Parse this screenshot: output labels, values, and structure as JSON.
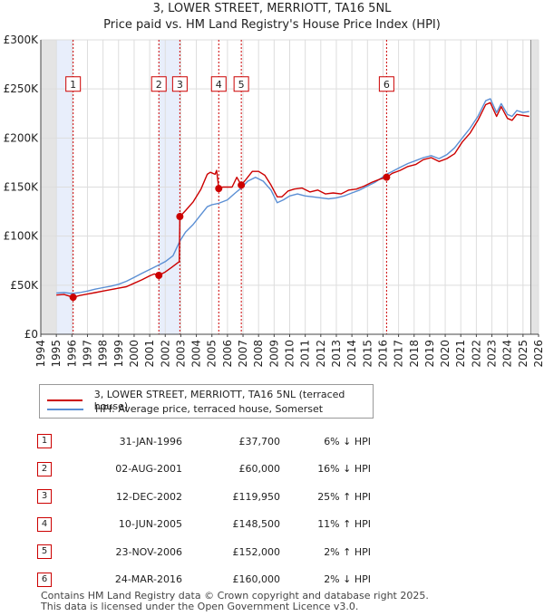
{
  "chart_data": {
    "type": "line",
    "title": "3, LOWER STREET, MERRIOTT, TA16 5NL",
    "subtitle": "Price paid vs. HM Land Registry's House Price Index (HPI)",
    "xlim": [
      1994,
      2026
    ],
    "ylim": [
      0,
      300000
    ],
    "x_ticks": [
      "1994",
      "1995",
      "1996",
      "1997",
      "1998",
      "1999",
      "2000",
      "2001",
      "2002",
      "2003",
      "2004",
      "2005",
      "2006",
      "2007",
      "2008",
      "2009",
      "2010",
      "2011",
      "2012",
      "2013",
      "2014",
      "2015",
      "2016",
      "2017",
      "2018",
      "2019",
      "2020",
      "2021",
      "2022",
      "2023",
      "2024",
      "2025",
      "2026"
    ],
    "y_ticks": [
      {
        "value": 0,
        "label": "£0"
      },
      {
        "value": 50000,
        "label": "£50K"
      },
      {
        "value": 100000,
        "label": "£100K"
      },
      {
        "value": 150000,
        "label": "£150K"
      },
      {
        "value": 200000,
        "label": "£200K"
      },
      {
        "value": 250000,
        "label": "£250K"
      },
      {
        "value": 300000,
        "label": "£300K"
      }
    ],
    "series": [
      {
        "name": "3, LOWER STREET, MERRIOTT, TA16 5NL (terraced house)",
        "color": "#cc0000",
        "points": [
          [
            1995.0,
            40000
          ],
          [
            1995.5,
            40500
          ],
          [
            1996.08,
            37700
          ],
          [
            1996.5,
            39500
          ],
          [
            1997.0,
            41000
          ],
          [
            1997.5,
            42500
          ],
          [
            1998.0,
            44000
          ],
          [
            1998.5,
            45500
          ],
          [
            1999.0,
            47000
          ],
          [
            1999.5,
            48500
          ],
          [
            2000.0,
            52000
          ],
          [
            2000.5,
            55500
          ],
          [
            2001.0,
            59500
          ],
          [
            2001.3,
            61500
          ],
          [
            2001.59,
            60000
          ],
          [
            2002.0,
            63500
          ],
          [
            2002.4,
            68000
          ],
          [
            2002.9,
            74000
          ],
          [
            2002.94,
            119950
          ],
          [
            2003.3,
            126000
          ],
          [
            2003.8,
            135000
          ],
          [
            2004.3,
            148000
          ],
          [
            2004.7,
            163000
          ],
          [
            2004.9,
            165000
          ],
          [
            2005.2,
            163000
          ],
          [
            2005.3,
            167000
          ],
          [
            2005.44,
            148500
          ],
          [
            2005.7,
            150000
          ],
          [
            2006.3,
            150000
          ],
          [
            2006.6,
            160000
          ],
          [
            2006.89,
            152000
          ],
          [
            2007.2,
            158000
          ],
          [
            2007.6,
            166000
          ],
          [
            2008.0,
            166000
          ],
          [
            2008.4,
            162000
          ],
          [
            2008.8,
            152000
          ],
          [
            2009.2,
            140000
          ],
          [
            2009.5,
            140000
          ],
          [
            2009.9,
            146000
          ],
          [
            2010.3,
            148000
          ],
          [
            2010.8,
            149000
          ],
          [
            2011.3,
            145000
          ],
          [
            2011.8,
            147000
          ],
          [
            2012.3,
            143000
          ],
          [
            2012.8,
            144000
          ],
          [
            2013.3,
            143000
          ],
          [
            2013.8,
            147000
          ],
          [
            2014.3,
            148000
          ],
          [
            2014.8,
            151000
          ],
          [
            2015.3,
            155000
          ],
          [
            2015.8,
            158000
          ],
          [
            2016.23,
            160000
          ],
          [
            2016.6,
            164000
          ],
          [
            2017.1,
            167000
          ],
          [
            2017.6,
            171000
          ],
          [
            2018.1,
            173000
          ],
          [
            2018.6,
            178000
          ],
          [
            2019.1,
            180000
          ],
          [
            2019.6,
            176000
          ],
          [
            2020.1,
            179000
          ],
          [
            2020.6,
            184000
          ],
          [
            2021.1,
            196000
          ],
          [
            2021.6,
            205000
          ],
          [
            2022.1,
            218000
          ],
          [
            2022.6,
            234000
          ],
          [
            2022.9,
            236000
          ],
          [
            2023.3,
            222000
          ],
          [
            2023.6,
            232000
          ],
          [
            2024.0,
            220000
          ],
          [
            2024.3,
            218000
          ],
          [
            2024.6,
            224000
          ],
          [
            2025.0,
            223000
          ],
          [
            2025.4,
            222000
          ]
        ]
      },
      {
        "name": "HPI: Average price, terraced house, Somerset",
        "color": "#5b8fd4",
        "points": [
          [
            1995.0,
            42000
          ],
          [
            1995.5,
            42500
          ],
          [
            1996.0,
            41500
          ],
          [
            1996.5,
            42500
          ],
          [
            1997.0,
            44000
          ],
          [
            1997.5,
            46000
          ],
          [
            1998.0,
            47500
          ],
          [
            1998.5,
            49000
          ],
          [
            1999.0,
            51000
          ],
          [
            1999.5,
            54000
          ],
          [
            2000.0,
            58000
          ],
          [
            2000.5,
            62000
          ],
          [
            2001.0,
            66000
          ],
          [
            2001.5,
            70000
          ],
          [
            2002.0,
            74000
          ],
          [
            2002.5,
            80000
          ],
          [
            2002.94,
            95000
          ],
          [
            2003.3,
            104000
          ],
          [
            2003.8,
            112000
          ],
          [
            2004.3,
            122000
          ],
          [
            2004.7,
            130000
          ],
          [
            2005.0,
            132000
          ],
          [
            2005.44,
            133500
          ],
          [
            2006.0,
            137000
          ],
          [
            2006.5,
            144000
          ],
          [
            2006.89,
            149000
          ],
          [
            2007.3,
            156000
          ],
          [
            2007.8,
            160000
          ],
          [
            2008.3,
            156000
          ],
          [
            2008.8,
            147000
          ],
          [
            2009.2,
            134000
          ],
          [
            2009.6,
            137000
          ],
          [
            2010.0,
            141000
          ],
          [
            2010.5,
            143000
          ],
          [
            2011.0,
            141000
          ],
          [
            2011.5,
            140000
          ],
          [
            2012.0,
            139000
          ],
          [
            2012.5,
            138000
          ],
          [
            2013.0,
            139000
          ],
          [
            2013.5,
            141000
          ],
          [
            2014.0,
            144000
          ],
          [
            2014.5,
            147000
          ],
          [
            2015.0,
            151000
          ],
          [
            2015.5,
            155000
          ],
          [
            2016.23,
            163000
          ],
          [
            2016.6,
            166000
          ],
          [
            2017.1,
            170000
          ],
          [
            2017.6,
            174000
          ],
          [
            2018.1,
            177000
          ],
          [
            2018.6,
            180000
          ],
          [
            2019.1,
            182000
          ],
          [
            2019.6,
            179000
          ],
          [
            2020.1,
            183000
          ],
          [
            2020.6,
            190000
          ],
          [
            2021.1,
            200000
          ],
          [
            2021.6,
            210000
          ],
          [
            2022.1,
            222000
          ],
          [
            2022.6,
            238000
          ],
          [
            2022.9,
            240000
          ],
          [
            2023.3,
            226000
          ],
          [
            2023.6,
            235000
          ],
          [
            2024.0,
            224000
          ],
          [
            2024.3,
            222000
          ],
          [
            2024.6,
            228000
          ],
          [
            2025.0,
            226000
          ],
          [
            2025.4,
            227000
          ]
        ]
      }
    ],
    "sales": [
      {
        "num": "1",
        "x": 1996.08,
        "date": "31-JAN-1996",
        "price": "£37,700",
        "price_value": 37700,
        "hpi": "6% ↓ HPI"
      },
      {
        "num": "2",
        "x": 2001.59,
        "date": "02-AUG-2001",
        "price": "£60,000",
        "price_value": 60000,
        "hpi": "16% ↓ HPI"
      },
      {
        "num": "3",
        "x": 2002.94,
        "date": "12-DEC-2002",
        "price": "£119,950",
        "price_value": 119950,
        "hpi": "25% ↑ HPI"
      },
      {
        "num": "4",
        "x": 2005.44,
        "date": "10-JUN-2005",
        "price": "£148,500",
        "price_value": 148500,
        "hpi": "11% ↑ HPI"
      },
      {
        "num": "5",
        "x": 2006.89,
        "date": "23-NOV-2006",
        "price": "£152,000",
        "price_value": 152000,
        "hpi": "2% ↑ HPI"
      },
      {
        "num": "6",
        "x": 2016.23,
        "date": "24-MAR-2016",
        "price": "£160,000",
        "price_value": 160000,
        "hpi": "2% ↓ HPI"
      }
    ],
    "shaded_range": [
      2001.59,
      2002.94
    ],
    "data_start": 1995.0,
    "data_end": 2025.5,
    "marker_box_value": 255000
  },
  "footer": {
    "line1": "Contains HM Land Registry data © Crown copyright and database right 2025.",
    "line2": "This data is licensed under the Open Government Licence v3.0."
  }
}
